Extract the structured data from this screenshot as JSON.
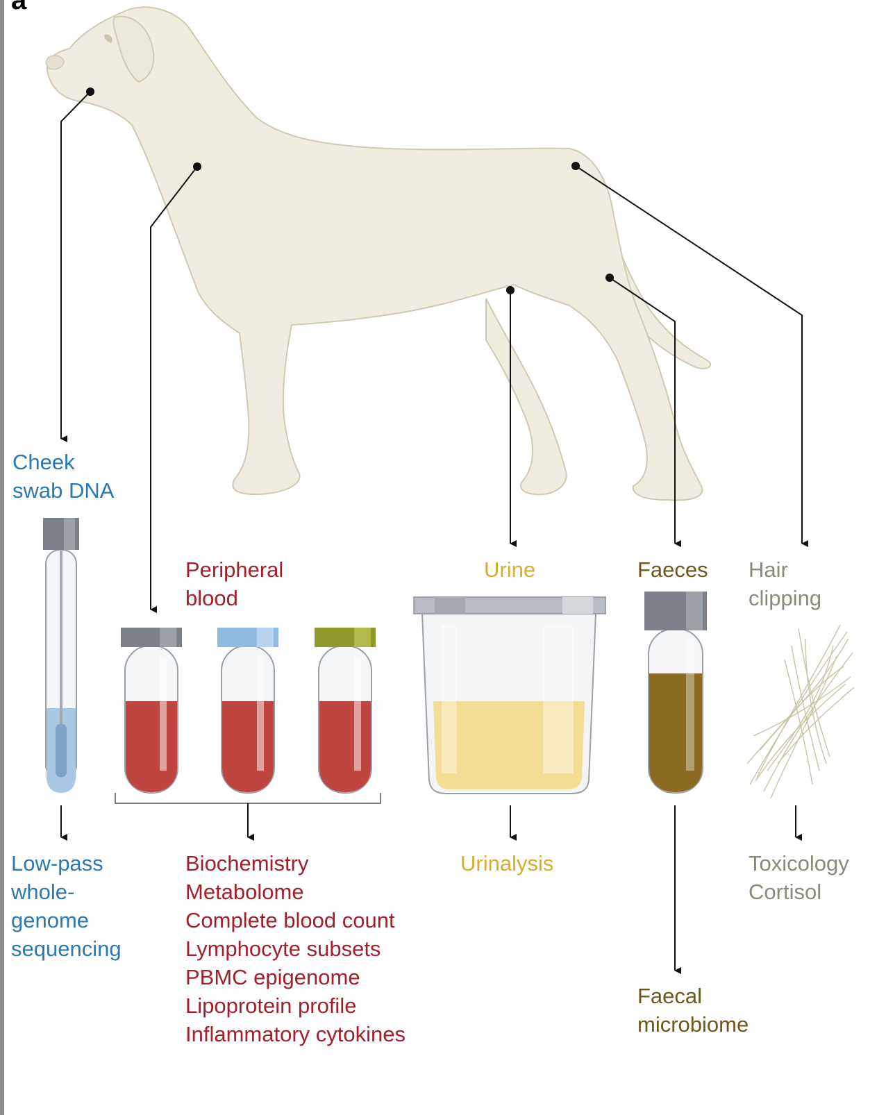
{
  "panel_letter": "a",
  "colors": {
    "dog": "#f0ede0",
    "dog_outline": "#cfcab3",
    "blue": "#2a78b4",
    "red": "#a31f2a",
    "yellow": "#d8ad2c",
    "brown": "#6f561a",
    "grey": "#8a8a78",
    "blood": "#c0443f",
    "urine": "#f3dc94",
    "faeces": "#8b6a22"
  },
  "samples": {
    "cheek": {
      "title": "Cheek\nswab DNA",
      "outputs": "Low-pass\nwhole-\ngenome\nsequencing"
    },
    "blood": {
      "title": "Peripheral\nblood",
      "outputs": [
        "Biochemistry",
        "Metabolome",
        "Complete blood count",
        "Lymphocyte subsets",
        "PBMC epigenome",
        "Lipoprotein profile",
        "Inflammatory cytokines"
      ]
    },
    "urine": {
      "title": "Urine",
      "outputs": "Urinalysis"
    },
    "faeces": {
      "title": "Faeces",
      "outputs": "Faecal\nmicrobiome"
    },
    "hair": {
      "title": "Hair\nclipping",
      "outputs": [
        "Toxicology",
        "Cortisol"
      ]
    }
  }
}
